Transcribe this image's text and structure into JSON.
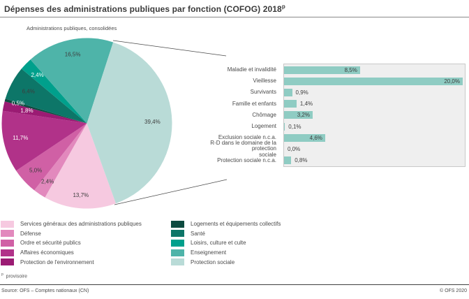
{
  "header": {
    "title": "Dépenses des administrations publiques par fonction (COFOG) 2018",
    "title_sup": "p",
    "subtitle": "Administrations publiques, consolidées"
  },
  "chart_data": [
    {
      "type": "pie",
      "title": "Administrations publiques, consolidées",
      "unit": "%",
      "start_angle_deg": 160.1,
      "direction": "clockwise",
      "slices": [
        {
          "label": "Services généraux des administrations publiques",
          "value": 13.7,
          "display": "13,7%",
          "color": "#f6c9e0",
          "label_color": "#3d3d3d",
          "label_r": 0.85
        },
        {
          "label": "Défense",
          "value": 2.4,
          "display": "2,4%",
          "color": "#e289bd",
          "label_color": "#3d3d3d",
          "label_r": 0.83
        },
        {
          "label": "Ordre et sécurité publics",
          "value": 5.0,
          "display": "5,0%",
          "color": "#d060a5",
          "label_color": "#3d3d3d",
          "label_r": 0.82
        },
        {
          "label": "Affaires économiques",
          "value": 11.7,
          "display": "11,7%",
          "color": "#b13289",
          "label_color": "#ffffff",
          "label_r": 0.8
        },
        {
          "label": "Protection de l'environnement",
          "value": 1.8,
          "display": "1,8%",
          "color": "#9b1b73",
          "label_color": "#ffffff",
          "label_r": 0.72
        },
        {
          "label": "Logements et équipements collectifs",
          "value": 0.5,
          "display": "0,5%",
          "color": "#0c4a3f",
          "label_color": "#ffffff",
          "label_r": 0.84
        },
        {
          "label": "Santé",
          "value": 6.4,
          "display": "6,4%",
          "color": "#0d7668",
          "label_color": "#3d3d3d",
          "label_r": 0.78
        },
        {
          "label": "Loisirs, culture et culte",
          "value": 2.4,
          "display": "2,4%",
          "color": "#00a08c",
          "label_color": "#ffffff",
          "label_r": 0.81
        },
        {
          "label": "Enseignement",
          "value": 16.5,
          "display": "16,5%",
          "color": "#4eb4a9",
          "label_color": "#3d3d3d",
          "label_r": 0.82
        },
        {
          "label": "Protection sociale",
          "value": 39.4,
          "display": "39,4%",
          "color": "#b9dbd7",
          "label_color": "#3d3d3d",
          "label_r": 0.77
        }
      ]
    },
    {
      "type": "bar",
      "orientation": "horizontal",
      "subject": "Protection sociale",
      "unit": "%",
      "xlim": [
        0,
        20.3
      ],
      "bar_color": "#8fccc3",
      "rows": [
        {
          "label": "Maladie et invalidité",
          "value": 8.5,
          "display": "8,5%"
        },
        {
          "label": "Vieillesse",
          "value": 20.0,
          "display": "20,0%"
        },
        {
          "label": "Survivants",
          "value": 0.9,
          "display": "0,9%"
        },
        {
          "label": "Famille et enfants",
          "value": 1.4,
          "display": "1,4%"
        },
        {
          "label": "Chômage",
          "value": 3.2,
          "display": "3,2%"
        },
        {
          "label": "Logement",
          "value": 0.1,
          "display": "0,1%"
        },
        {
          "label": "Exclusion sociale n.c.a.",
          "value": 4.6,
          "display": "4,6%"
        },
        {
          "label": "R-D dans le domaine de la protection\nsociale",
          "value": 0.0,
          "display": "0,0%"
        },
        {
          "label": "Protection sociale n.c.a.",
          "value": 0.8,
          "display": "0,8%"
        }
      ]
    }
  ],
  "footnote": {
    "sup": "p",
    "text": "provisoire"
  },
  "footer": {
    "source": "Source: OFS – Comptes nationaux (CN)",
    "copyright": "© OFS 2020"
  }
}
